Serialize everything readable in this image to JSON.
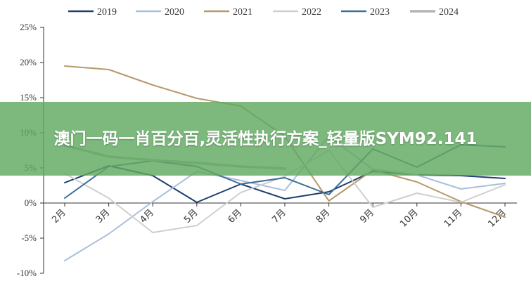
{
  "banner": {
    "title": "澳门一码一肖百分百,灵活性执行方案_轻量版SYM92.141"
  },
  "chart_data": {
    "type": "line",
    "categories": [
      "2月",
      "3月",
      "4月",
      "5月",
      "6月",
      "7月",
      "8月",
      "9月",
      "10月",
      "11月",
      "12月"
    ],
    "y_ticks": [
      "25%",
      "20%",
      "15%",
      "10%",
      "5%",
      "0%",
      "-5%",
      "-10%"
    ],
    "ylim": [
      -10,
      25
    ],
    "grid": false,
    "legend_position": "top",
    "series": [
      {
        "name": "2019",
        "color": "#1f3d6e",
        "values": [
          2.9,
          5.3,
          3.9,
          0.1,
          2.7,
          0.6,
          1.6,
          4.5,
          4.0,
          3.9,
          3.5
        ]
      },
      {
        "name": "2020",
        "color": "#a9bfd9",
        "values": [
          -8.2,
          -4.4,
          0.2,
          4.5,
          3.2,
          1.8,
          9.5,
          4.8,
          4.0,
          2.0,
          2.8
        ]
      },
      {
        "name": "2021",
        "color": "#b59a6a",
        "values": [
          19.5,
          19.0,
          16.8,
          14.9,
          13.8,
          9.5,
          0.3,
          4.7,
          3.0,
          0.2,
          -2.0
        ]
      },
      {
        "name": "2022",
        "color": "#cfcfcf",
        "values": [
          4.2,
          0.7,
          -4.2,
          -3.2,
          1.5,
          3.8,
          7.5,
          -0.6,
          1.4,
          0.1,
          2.6
        ]
      },
      {
        "name": "2023",
        "color": "#3c6e9a",
        "values": [
          0.7,
          5.2,
          6.0,
          5.2,
          2.7,
          3.6,
          1.2,
          7.7,
          5.1,
          8.3,
          8.0
        ]
      },
      {
        "name": "2024",
        "color": "#b3b3b3",
        "values": [
          8.2,
          6.6,
          6.1,
          5.7,
          5.2,
          4.9,
          null,
          null,
          null,
          null,
          null
        ]
      }
    ]
  }
}
